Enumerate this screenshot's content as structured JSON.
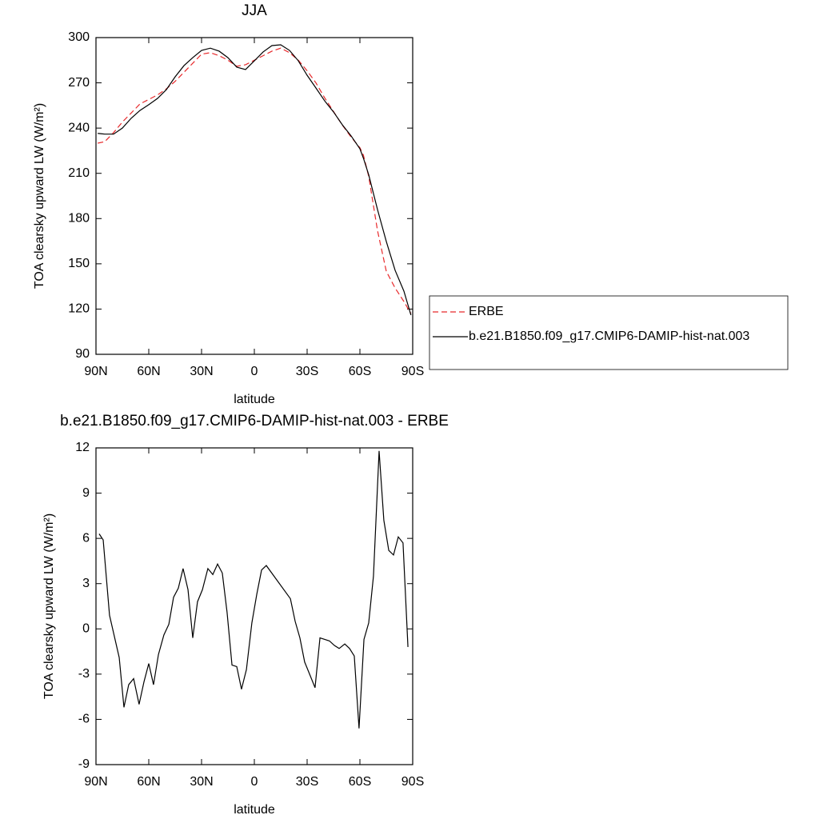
{
  "chart_data": [
    {
      "type": "line",
      "title": "JJA",
      "xlabel": "latitude",
      "ylabel": "TOA clearsky upward LW (W/m²)",
      "xlim": [
        90,
        -90
      ],
      "xticks": [
        {
          "value": 90,
          "label": "90N"
        },
        {
          "value": 60,
          "label": "60N"
        },
        {
          "value": 30,
          "label": "30N"
        },
        0,
        {
          "value": -30,
          "label": "30S"
        },
        {
          "value": -60,
          "label": "60S"
        },
        {
          "value": -90,
          "label": "90S"
        }
      ],
      "ylim": [
        90,
        300
      ],
      "yticks": [
        90,
        120,
        150,
        180,
        210,
        240,
        270,
        300
      ],
      "legend": "right",
      "x": [
        89,
        85,
        80,
        75,
        70,
        65,
        60,
        55,
        50,
        45,
        40,
        35,
        30,
        25,
        20,
        15,
        10,
        5,
        0,
        -5,
        -10,
        -15,
        -20,
        -25,
        -30,
        -35,
        -40,
        -45,
        -50,
        -55,
        -60,
        -62,
        -65,
        -70,
        -75,
        -80,
        -85,
        -89
      ],
      "series": [
        {
          "name": "ERBE",
          "color": "#e8292b",
          "line_style": "dashed",
          "values": [
            230,
            231,
            237,
            244,
            250,
            256,
            259,
            262,
            266,
            271,
            277,
            283,
            289,
            290,
            288,
            285,
            281,
            282,
            285,
            288,
            291,
            293,
            290,
            285,
            278,
            270,
            260,
            251,
            242,
            234,
            227,
            222,
            208,
            172,
            145,
            134,
            125,
            117
          ]
        },
        {
          "name": "b.e21.B1850.f09_g17.CMIP6-DAMIP-hist-nat.003",
          "color": "#000000",
          "line_style": "solid",
          "values": [
            236.5,
            236,
            236,
            240,
            246.5,
            251.7,
            255.5,
            259.7,
            265.5,
            274,
            281.4,
            286.7,
            291.5,
            293,
            291,
            286.7,
            280.4,
            278.8,
            284.6,
            290.5,
            294.7,
            295.2,
            291.5,
            284.6,
            275,
            266.6,
            258,
            250.7,
            242.2,
            234.8,
            226.3,
            220,
            209,
            186,
            164.8,
            145.7,
            131.9,
            116
          ]
        }
      ]
    },
    {
      "type": "line",
      "title": "b.e21.B1850.f09_g17.CMIP6-DAMIP-hist-nat.003 - ERBE",
      "xlabel": "latitude",
      "ylabel": "TOA clearsky upward LW (W/m²)",
      "xlim": [
        90,
        -90
      ],
      "xticks": [
        {
          "value": 90,
          "label": "90N"
        },
        {
          "value": 60,
          "label": "60N"
        },
        {
          "value": 30,
          "label": "30N"
        },
        0,
        {
          "value": -30,
          "label": "30S"
        },
        {
          "value": -60,
          "label": "60S"
        },
        {
          "value": -90,
          "label": "90S"
        }
      ],
      "ylim": [
        -9,
        12
      ],
      "yticks": [
        -9,
        -6,
        -3,
        0,
        3,
        6,
        9,
        12
      ],
      "x": [
        88.2,
        85.9,
        82.3,
        76.8,
        74.1,
        71.4,
        68.6,
        65.5,
        62.7,
        60,
        57.3,
        54.5,
        51.4,
        48.6,
        45.9,
        43.2,
        40.5,
        37.7,
        35,
        32.3,
        29.5,
        26.4,
        23.6,
        20.9,
        18.2,
        15.5,
        12.7,
        10,
        7.3,
        4.5,
        1.4,
        -1.4,
        -4.1,
        -6.8,
        -20.5,
        -23.2,
        -25.9,
        -28.6,
        -31.4,
        -34.5,
        -37.3,
        -40,
        -42.7,
        -45.5,
        -48.2,
        -51.4,
        -54.1,
        -56.8,
        -59.5,
        -62.3,
        -65,
        -67.7,
        -70.9,
        -73.6,
        -76.4,
        -79.1,
        -81.8,
        -84.5,
        -87.3
      ],
      "series": [
        {
          "color": "#000000",
          "line_style": "solid",
          "values": [
            6.3,
            5.9,
            0.9,
            -1.9,
            -5.2,
            -3.7,
            -3.3,
            -5.0,
            -3.5,
            -2.3,
            -3.7,
            -1.7,
            -0.4,
            0.3,
            2.1,
            2.7,
            4.0,
            2.6,
            -0.6,
            1.8,
            2.6,
            4.0,
            3.6,
            4.3,
            3.7,
            1.1,
            -2.4,
            -2.5,
            -4.0,
            -2.7,
            0.4,
            2.3,
            3.9,
            4.2,
            2.0,
            0.5,
            -0.6,
            -2.2,
            -3.0,
            -3.9,
            -0.6,
            -0.7,
            -0.8,
            -1.1,
            -1.3,
            -1.0,
            -1.3,
            -1.8,
            -6.6,
            -0.7,
            0.4,
            3.5,
            11.8,
            7.2,
            5.2,
            4.9,
            6.1,
            5.7,
            -1.2
          ]
        }
      ]
    }
  ]
}
